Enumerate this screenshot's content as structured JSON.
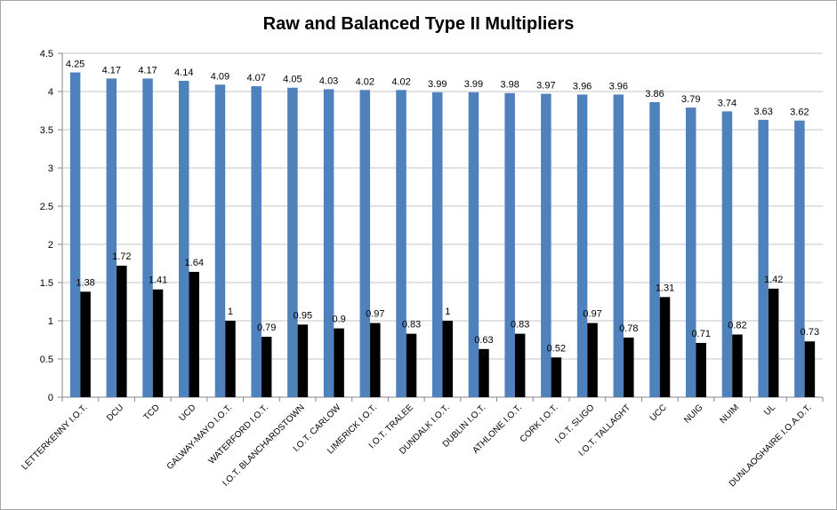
{
  "chart_data": {
    "type": "bar",
    "title": "Raw and Balanced Type II Multipliers",
    "xlabel": "",
    "ylabel": "",
    "ylim": [
      0,
      4.5
    ],
    "ytick_step": 0.5,
    "yticks": [
      "0",
      "0.5",
      "1",
      "1.5",
      "2",
      "2.5",
      "3",
      "3.5",
      "4",
      "4.5"
    ],
    "grid": true,
    "legend": "none",
    "categories": [
      "LETTERKENNY I.O.T.",
      "DCU",
      "TCD",
      "UCD",
      "GALWAY-MAYO I.O.T.",
      "WATERFORD I.O.T.",
      "I.O.T. BLANCHARDSTOWN",
      "I.O.T. CARLOW",
      "LIMERICK I.O.T.",
      "I.O.T. TRALEE",
      "DUNDALK I.O.T.",
      "DUBLIN I.O.T.",
      "ATHLONE I.O.T.",
      "CORK I.O.T.",
      "I.O.T. SLIGO",
      "I.O.T. TALLAGHT",
      "UCC",
      "NUIG",
      "NUIM",
      "UL",
      "DUNLAOGHAIRE I.O.A.D.T."
    ],
    "series": [
      {
        "name": "Raw",
        "color": "#4f81bd",
        "values": [
          4.25,
          4.17,
          4.17,
          4.14,
          4.09,
          4.07,
          4.05,
          4.03,
          4.02,
          4.02,
          3.99,
          3.99,
          3.98,
          3.97,
          3.96,
          3.96,
          3.86,
          3.79,
          3.74,
          3.63,
          3.62
        ],
        "labels": [
          "4.25",
          "4.17",
          "4.17",
          "4.14",
          "4.09",
          "4.07",
          "4.05",
          "4.03",
          "4.02",
          "4.02",
          "3.99",
          "3.99",
          "3.98",
          "3.97",
          "3.96",
          "3.96",
          "3.86",
          "3.79",
          "3.74",
          "3.63",
          "3.62"
        ]
      },
      {
        "name": "Balanced",
        "color": "#000000",
        "values": [
          1.38,
          1.72,
          1.41,
          1.64,
          1,
          0.79,
          0.95,
          0.9,
          0.97,
          0.83,
          1,
          0.63,
          0.83,
          0.52,
          0.97,
          0.78,
          1.31,
          0.71,
          0.82,
          1.42,
          0.73
        ],
        "labels": [
          "1.38",
          "1.72",
          "1.41",
          "1.64",
          "1",
          "0.79",
          "0.95",
          "0.9",
          "0.97",
          "0.83",
          "1",
          "0.63",
          "0.83",
          "0.52",
          "0.97",
          "0.78",
          "1.31",
          "0.71",
          "0.82",
          "1.42",
          "0.73"
        ]
      }
    ]
  }
}
